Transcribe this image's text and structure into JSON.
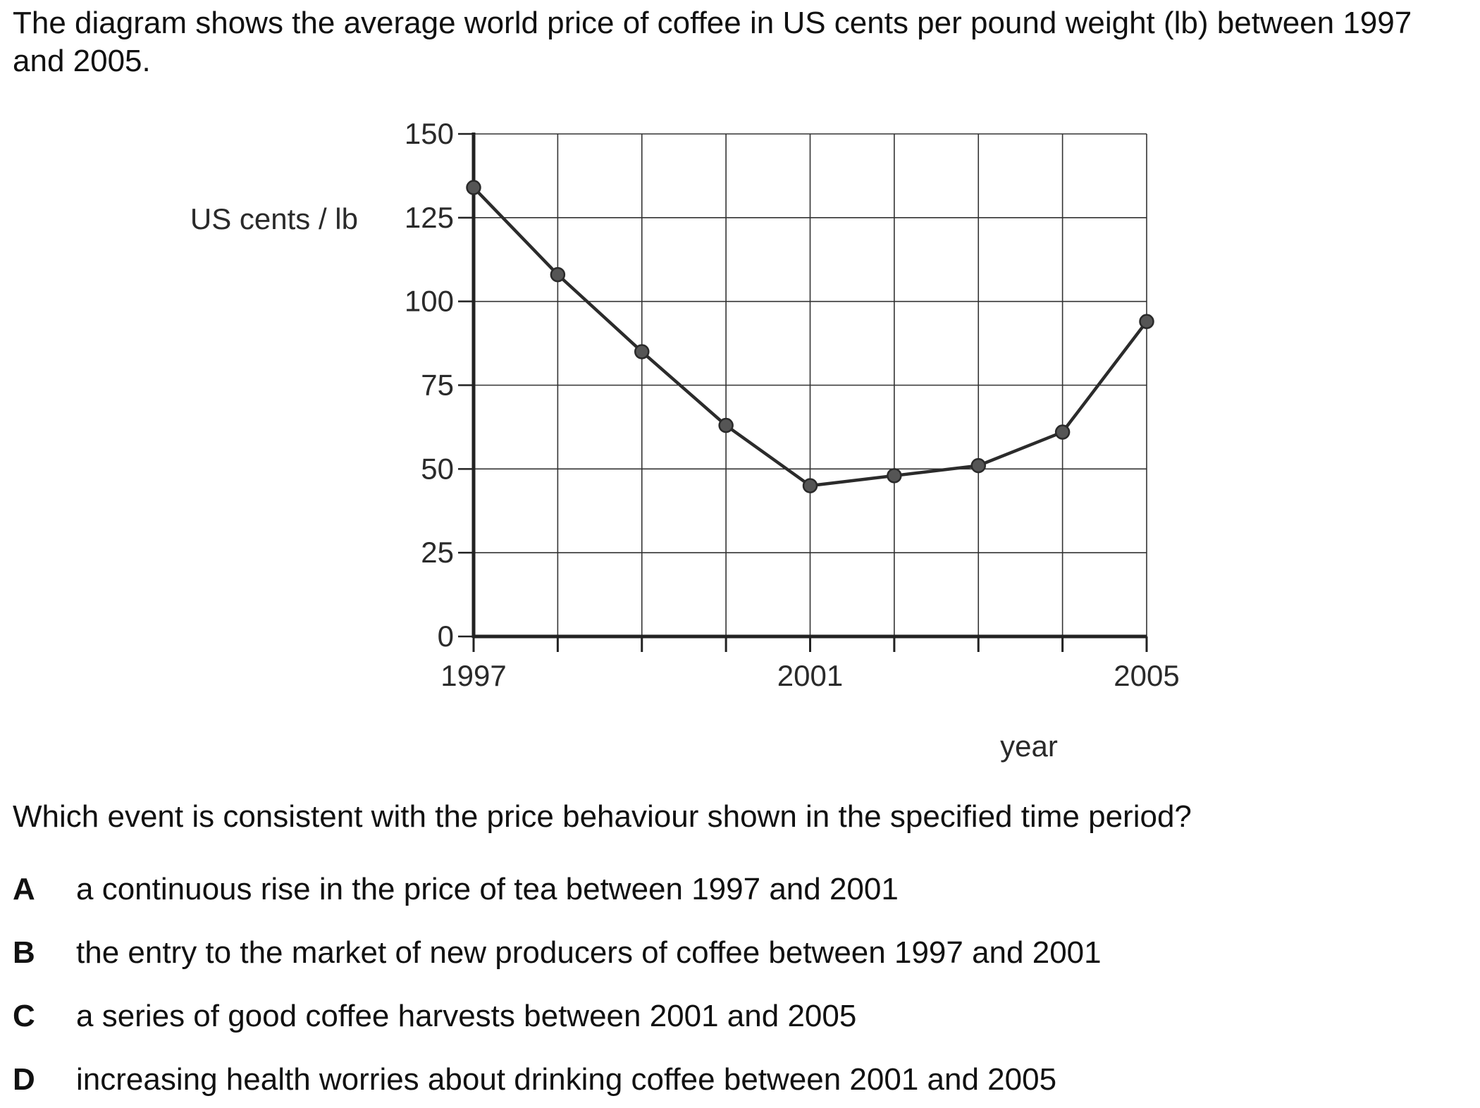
{
  "intro_text": "The diagram shows the average world price of coffee in US cents per pound weight (lb) between 1997 and 2005.",
  "question_text": "Which event is consistent with the price behaviour shown in the specified time period?",
  "options": [
    {
      "letter": "A",
      "text": "a continuous rise in the price of tea between 1997 and 2001"
    },
    {
      "letter": "B",
      "text": "the entry to the market of new producers of coffee between 1997 and 2001"
    },
    {
      "letter": "C",
      "text": "a series of good coffee harvests between 2001 and 2005"
    },
    {
      "letter": "D",
      "text": "increasing health worries about drinking coffee between 2001 and 2005"
    }
  ],
  "chart_data": {
    "type": "line",
    "x": [
      1997,
      1998,
      1999,
      2000,
      2001,
      2002,
      2003,
      2004,
      2005
    ],
    "values": [
      134,
      108,
      85,
      63,
      45,
      48,
      51,
      61,
      94
    ],
    "xlabel": "year",
    "ylabel": "US cents / lb",
    "xlim": [
      1997,
      2005
    ],
    "ylim": [
      0,
      150
    ],
    "yticks": [
      0,
      25,
      50,
      75,
      100,
      125,
      150
    ],
    "ytick_labels": [
      "0",
      "25",
      "50",
      "75",
      "100",
      "125",
      "150"
    ],
    "xticks": [
      1997,
      1998,
      1999,
      2000,
      2001,
      2002,
      2003,
      2004,
      2005
    ],
    "xtick_labels": [
      "1997",
      "",
      "",
      "",
      "2001",
      "",
      "",
      "",
      "2005"
    ],
    "grid": true,
    "colors": {
      "line": "#2b2b2b",
      "marker": "#555555",
      "grid": "#333333",
      "axis": "#222222"
    }
  }
}
